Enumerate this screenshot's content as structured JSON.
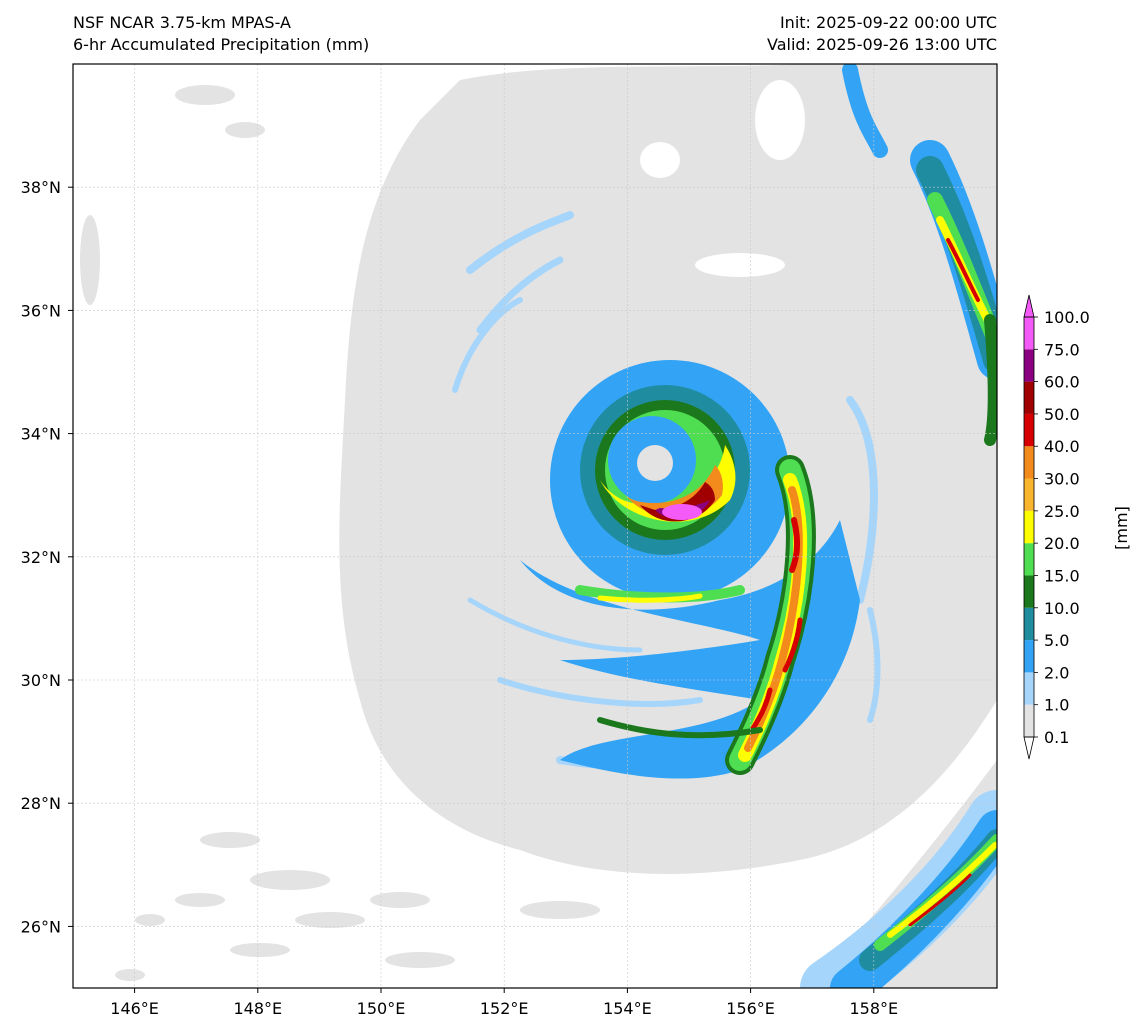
{
  "header": {
    "model": "NSF NCAR 3.75-km MPAS-A",
    "field": "6-hr Accumulated Precipitation (mm)",
    "init": "Init: 2025-09-22 00:00 UTC",
    "valid": "Valid: 2025-09-26 13:00 UTC"
  },
  "map": {
    "lon_range": [
      145,
      160
    ],
    "lat_range": [
      25,
      40
    ],
    "lon_ticks": [
      {
        "value": 146,
        "label": "146°E"
      },
      {
        "value": 148,
        "label": "148°E"
      },
      {
        "value": 150,
        "label": "150°E"
      },
      {
        "value": 152,
        "label": "152°E"
      },
      {
        "value": 154,
        "label": "154°E"
      },
      {
        "value": 156,
        "label": "156°E"
      },
      {
        "value": 158,
        "label": "158°E"
      }
    ],
    "lat_ticks": [
      {
        "value": 26,
        "label": "26°N"
      },
      {
        "value": 28,
        "label": "28°N"
      },
      {
        "value": 30,
        "label": "30°N"
      },
      {
        "value": 32,
        "label": "32°N"
      },
      {
        "value": 34,
        "label": "34°N"
      },
      {
        "value": 36,
        "label": "36°N"
      },
      {
        "value": 38,
        "label": "38°N"
      }
    ],
    "storm_center": {
      "lon": 154.5,
      "lat": 33.3
    }
  },
  "colorbar": {
    "unit_label": "[mm]",
    "levels": [
      "0.1",
      "1.0",
      "2.0",
      "5.0",
      "10.0",
      "15.0",
      "20.0",
      "25.0",
      "30.0",
      "40.0",
      "50.0",
      "60.0",
      "75.0",
      "100.0"
    ],
    "colors": [
      "#e3e3e3",
      "#a6d5fb",
      "#33a4f5",
      "#1f8ca0",
      "#1c781c",
      "#4fde52",
      "#fefe00",
      "#f9b52e",
      "#f28a1c",
      "#d60000",
      "#a00000",
      "#8b0081",
      "#f45af7"
    ]
  }
}
